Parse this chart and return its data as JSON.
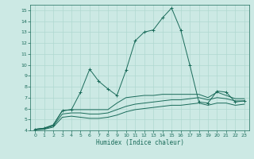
{
  "xlabel": "Humidex (Indice chaleur)",
  "bg_color": "#cce9e4",
  "grid_color": "#b0d8d0",
  "line_color": "#1a6b5a",
  "xlim": [
    -0.5,
    23.5
  ],
  "ylim": [
    4,
    15.5
  ],
  "xticks": [
    0,
    1,
    2,
    3,
    4,
    5,
    6,
    7,
    8,
    9,
    10,
    11,
    12,
    13,
    14,
    15,
    16,
    17,
    18,
    19,
    20,
    21,
    22,
    23
  ],
  "yticks": [
    4,
    5,
    6,
    7,
    8,
    9,
    10,
    11,
    12,
    13,
    14,
    15
  ],
  "line1_x": [
    0,
    1,
    2,
    3,
    4,
    5,
    6,
    7,
    8,
    9,
    10,
    11,
    12,
    13,
    14,
    15,
    16,
    17,
    18,
    19,
    20,
    21,
    22,
    23
  ],
  "line1_y": [
    4.1,
    4.2,
    4.5,
    5.8,
    5.9,
    7.5,
    9.6,
    8.5,
    7.8,
    7.2,
    9.5,
    12.2,
    13.0,
    13.2,
    14.3,
    15.2,
    13.2,
    10.0,
    6.6,
    6.5,
    7.6,
    7.5,
    6.6,
    6.7
  ],
  "line2_x": [
    0,
    1,
    2,
    3,
    4,
    5,
    6,
    7,
    8,
    9,
    10,
    11,
    12,
    13,
    14,
    15,
    16,
    17,
    18,
    19,
    20,
    21,
    22,
    23
  ],
  "line2_y": [
    4.1,
    4.2,
    4.5,
    5.8,
    5.9,
    5.9,
    5.9,
    5.9,
    5.9,
    6.5,
    7.0,
    7.1,
    7.2,
    7.2,
    7.3,
    7.3,
    7.3,
    7.3,
    7.3,
    7.0,
    7.5,
    7.2,
    6.9,
    6.9
  ],
  "line3_x": [
    0,
    1,
    2,
    3,
    4,
    5,
    6,
    7,
    8,
    9,
    10,
    11,
    12,
    13,
    14,
    15,
    16,
    17,
    18,
    19,
    20,
    21,
    22,
    23
  ],
  "line3_y": [
    4.1,
    4.15,
    4.4,
    5.5,
    5.6,
    5.6,
    5.5,
    5.5,
    5.6,
    5.9,
    6.2,
    6.4,
    6.5,
    6.6,
    6.7,
    6.8,
    6.8,
    6.9,
    7.0,
    6.8,
    7.0,
    6.9,
    6.7,
    6.7
  ],
  "line4_x": [
    0,
    1,
    2,
    3,
    4,
    5,
    6,
    7,
    8,
    9,
    10,
    11,
    12,
    13,
    14,
    15,
    16,
    17,
    18,
    19,
    20,
    21,
    22,
    23
  ],
  "line4_y": [
    4.05,
    4.1,
    4.3,
    5.2,
    5.3,
    5.2,
    5.1,
    5.1,
    5.2,
    5.4,
    5.7,
    5.9,
    6.0,
    6.1,
    6.2,
    6.3,
    6.3,
    6.4,
    6.5,
    6.3,
    6.5,
    6.5,
    6.3,
    6.4
  ]
}
